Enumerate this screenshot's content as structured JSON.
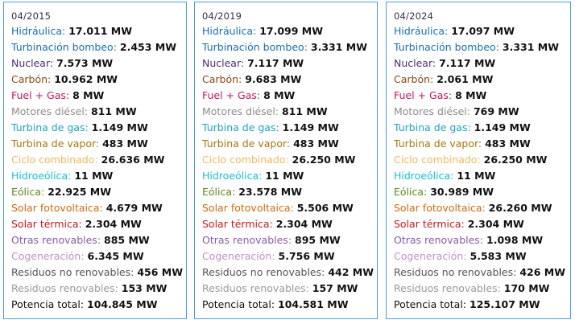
{
  "colors": {
    "border": "#4a9fd4",
    "value": "#111111",
    "date": "#333333"
  },
  "panels": [
    {
      "date": "04/2015",
      "rows": [
        {
          "label": "Hidráulica",
          "value": "17.011 MW",
          "color": "#1a6db5"
        },
        {
          "label": "Turbinación bombeo",
          "value": "2.453 MW",
          "color": "#1a6db5"
        },
        {
          "label": "Nuclear",
          "value": "7.573 MW",
          "color": "#4b2f7a"
        },
        {
          "label": "Carbón",
          "value": "10.962 MW",
          "color": "#8b4513"
        },
        {
          "label": "Fuel + Gas",
          "value": "8 MW",
          "color": "#c0185a"
        },
        {
          "label": "Motores diésel",
          "value": "811 MW",
          "color": "#8c8c8c"
        },
        {
          "label": "Turbina de gas",
          "value": "1.149 MW",
          "color": "#1ba3c6"
        },
        {
          "label": "Turbina de vapor",
          "value": "483 MW",
          "color": "#a07810"
        },
        {
          "label": "Ciclo combinado",
          "value": "26.636 MW",
          "color": "#f0b860"
        },
        {
          "label": "Hidroeólica",
          "value": "11 MW",
          "color": "#17c0d0"
        },
        {
          "label": "Eólica",
          "value": "22.925 MW",
          "color": "#5a8a1a"
        },
        {
          "label": "Solar fotovoltaica",
          "value": "4.679 MW",
          "color": "#d06a10"
        },
        {
          "label": "Solar térmica",
          "value": "2.304 MW",
          "color": "#c81818"
        },
        {
          "label": "Otras renovables",
          "value": "885 MW",
          "color": "#8a5aa8"
        },
        {
          "label": "Cogeneración",
          "value": "6.345 MW",
          "color": "#c090c8"
        },
        {
          "label": "Residuos no renovables",
          "value": "456 MW",
          "color": "#555555"
        },
        {
          "label": "Residuos renovables",
          "value": "153 MW",
          "color": "#999999"
        },
        {
          "label": "Potencia total",
          "value": "104.845 MW",
          "color": "#111111"
        }
      ]
    },
    {
      "date": "04/2019",
      "rows": [
        {
          "label": "Hidráulica",
          "value": "17.099 MW",
          "color": "#1a6db5"
        },
        {
          "label": "Turbinación bombeo",
          "value": "3.331 MW",
          "color": "#1a6db5"
        },
        {
          "label": "Nuclear",
          "value": "7.117 MW",
          "color": "#4b2f7a"
        },
        {
          "label": "Carbón",
          "value": "9.683 MW",
          "color": "#8b4513"
        },
        {
          "label": "Fuel + Gas",
          "value": "8 MW",
          "color": "#c0185a"
        },
        {
          "label": "Motores diésel",
          "value": "811 MW",
          "color": "#8c8c8c"
        },
        {
          "label": "Turbina de gas",
          "value": "1.149 MW",
          "color": "#1ba3c6"
        },
        {
          "label": "Turbina de vapor",
          "value": "483 MW",
          "color": "#a07810"
        },
        {
          "label": "Ciclo combinado",
          "value": "26.250 MW",
          "color": "#f0b860"
        },
        {
          "label": "Hidroeólica",
          "value": "11 MW",
          "color": "#17c0d0"
        },
        {
          "label": "Eólica",
          "value": "23.578 MW",
          "color": "#5a8a1a"
        },
        {
          "label": "Solar fotovoltaica",
          "value": "5.506 MW",
          "color": "#d06a10"
        },
        {
          "label": "Solar térmica",
          "value": "2.304 MW",
          "color": "#c81818"
        },
        {
          "label": "Otras renovables",
          "value": "895 MW",
          "color": "#8a5aa8"
        },
        {
          "label": "Cogeneración",
          "value": "5.756 MW",
          "color": "#c090c8"
        },
        {
          "label": "Residuos no renovables",
          "value": "442 MW",
          "color": "#555555"
        },
        {
          "label": "Residuos renovables",
          "value": "157 MW",
          "color": "#999999"
        },
        {
          "label": "Potencia total",
          "value": "104.581 MW",
          "color": "#111111"
        }
      ]
    },
    {
      "date": "04/2024",
      "rows": [
        {
          "label": "Hidráulica",
          "value": "17.097 MW",
          "color": "#1a6db5"
        },
        {
          "label": "Turbinación bombeo",
          "value": "3.331 MW",
          "color": "#1a6db5"
        },
        {
          "label": "Nuclear",
          "value": "7.117 MW",
          "color": "#4b2f7a"
        },
        {
          "label": "Carbón",
          "value": "2.061 MW",
          "color": "#8b4513"
        },
        {
          "label": "Fuel + Gas",
          "value": "8 MW",
          "color": "#c0185a"
        },
        {
          "label": "Motores diésel",
          "value": "769 MW",
          "color": "#8c8c8c"
        },
        {
          "label": "Turbina de gas",
          "value": "1.149 MW",
          "color": "#1ba3c6"
        },
        {
          "label": "Turbina de vapor",
          "value": "483 MW",
          "color": "#a07810"
        },
        {
          "label": "Ciclo combinado",
          "value": "26.250 MW",
          "color": "#f0b860"
        },
        {
          "label": "Hidroeólica",
          "value": "11 MW",
          "color": "#17c0d0"
        },
        {
          "label": "Eólica",
          "value": "30.989 MW",
          "color": "#5a8a1a"
        },
        {
          "label": "Solar fotovoltaica",
          "value": "26.260 MW",
          "color": "#d06a10"
        },
        {
          "label": "Solar térmica",
          "value": "2.304 MW",
          "color": "#c81818"
        },
        {
          "label": "Otras renovables",
          "value": "1.098 MW",
          "color": "#8a5aa8"
        },
        {
          "label": "Cogeneración",
          "value": "5.583 MW",
          "color": "#c090c8"
        },
        {
          "label": "Residuos no renovables",
          "value": "426 MW",
          "color": "#555555"
        },
        {
          "label": "Residuos renovables",
          "value": "170 MW",
          "color": "#999999"
        },
        {
          "label": "Potencia total",
          "value": "125.107 MW",
          "color": "#111111"
        }
      ]
    }
  ]
}
